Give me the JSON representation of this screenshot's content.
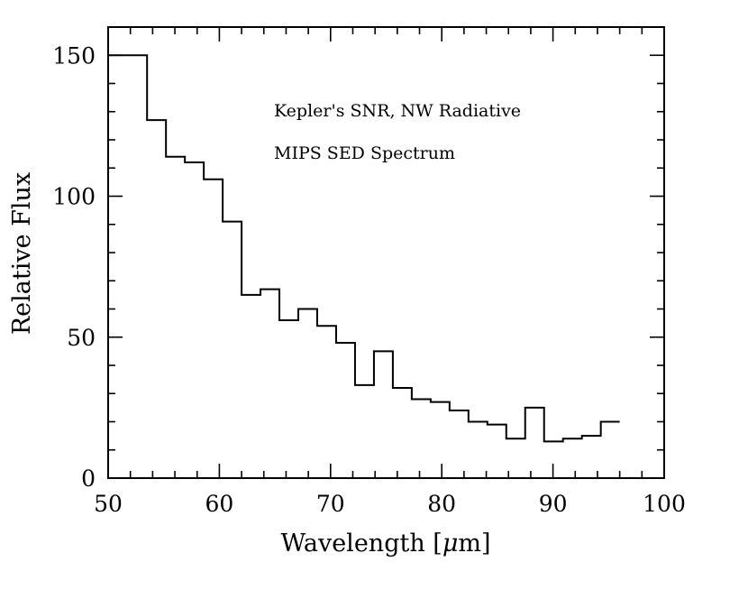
{
  "chart_data": {
    "type": "line",
    "style": "step",
    "xlabel_text": "Wavelength [",
    "xlabel_mu": "μ",
    "xlabel_unit": "m]",
    "ylabel": "Relative Flux",
    "xlim": [
      50,
      100
    ],
    "ylim": [
      0,
      160
    ],
    "x_ticks_major": [
      50,
      60,
      70,
      80,
      90,
      100
    ],
    "x_ticks_minor_step": 2,
    "y_ticks_major": [
      0,
      50,
      100,
      150
    ],
    "y_ticks_minor_step": 10,
    "annotations": [
      "Kepler's SNR, NW Radiative",
      "MIPS SED Spectrum"
    ],
    "bin_edges": [
      50.0,
      53.5,
      55.2,
      56.9,
      58.6,
      60.3,
      62.0,
      63.7,
      65.4,
      67.1,
      68.8,
      70.5,
      72.2,
      73.9,
      75.6,
      77.3,
      79.0,
      80.7,
      82.4,
      84.1,
      85.8,
      87.5,
      89.2,
      90.9,
      92.6,
      94.3,
      96.0
    ],
    "values": [
      150,
      127,
      114,
      112,
      106,
      91,
      65,
      67,
      56,
      60,
      54,
      48,
      33,
      45,
      32,
      28,
      27,
      24,
      20,
      19,
      14,
      25,
      13,
      14,
      15,
      20
    ]
  }
}
